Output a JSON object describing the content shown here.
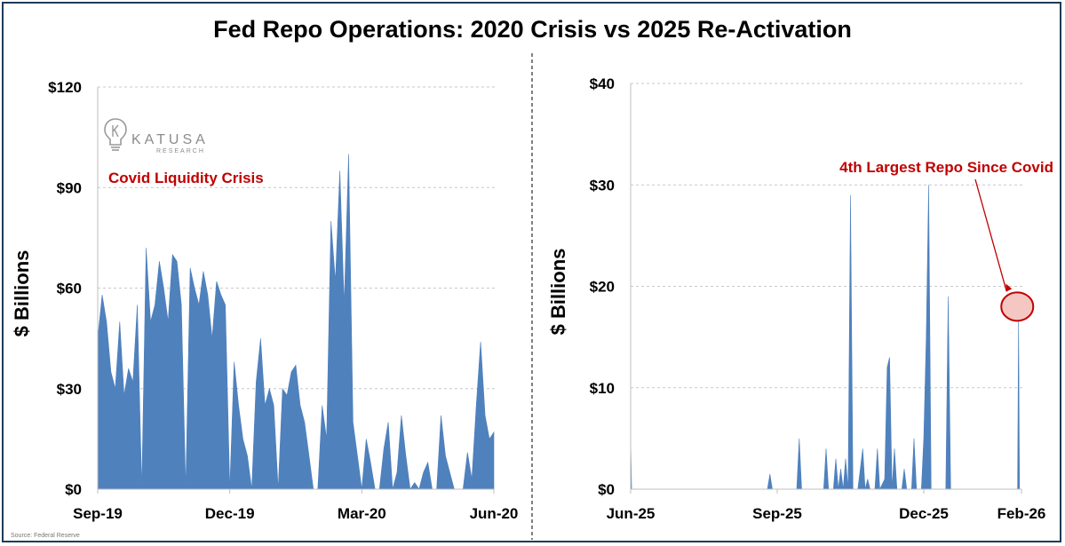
{
  "title": "Fed Repo Operations: 2020 Crisis vs 2025 Re-Activation",
  "source": "Source: Federal Reserve",
  "logo": {
    "name": "KATUSA",
    "sub": "RESEARCH",
    "icon": "lightbulb-icon"
  },
  "colors": {
    "area": "#4f81bd",
    "annotation": "#c00000",
    "highlight_fill": "#f4c7c3",
    "frame": "#1f3b57"
  },
  "chart_data": [
    {
      "type": "area",
      "ylabel": "$ Billions",
      "ylim": [
        0,
        120
      ],
      "yticks": [
        0,
        30,
        60,
        90,
        120
      ],
      "ytick_labels": [
        "$0",
        "$30",
        "$60",
        "$90",
        "$120"
      ],
      "xlim": [
        0,
        9
      ],
      "xtick_positions": [
        0,
        3,
        6,
        9
      ],
      "xtick_labels": [
        "Sep-19",
        "Dec-19",
        "Mar-20",
        "Jun-20"
      ],
      "annotation": "Covid Liquidity Crisis",
      "grid": true,
      "x": [
        0,
        0.1,
        0.2,
        0.3,
        0.4,
        0.5,
        0.6,
        0.7,
        0.8,
        0.9,
        1.0,
        1.1,
        1.2,
        1.3,
        1.4,
        1.5,
        1.6,
        1.7,
        1.8,
        1.9,
        2.0,
        2.1,
        2.2,
        2.3,
        2.4,
        2.5,
        2.6,
        2.7,
        2.8,
        2.9,
        3.0,
        3.1,
        3.2,
        3.3,
        3.4,
        3.5,
        3.6,
        3.7,
        3.8,
        3.9,
        4.0,
        4.1,
        4.2,
        4.3,
        4.4,
        4.5,
        4.6,
        4.7,
        4.8,
        4.9,
        5.0,
        5.1,
        5.2,
        5.3,
        5.4,
        5.5,
        5.6,
        5.7,
        5.8,
        5.9,
        6.0,
        6.1,
        6.2,
        6.3,
        6.4,
        6.5,
        6.6,
        6.7,
        6.8,
        6.9,
        7.0,
        7.1,
        7.2,
        7.3,
        7.4,
        7.5,
        7.6,
        7.7,
        7.8,
        7.9,
        8.0,
        8.1,
        8.2,
        8.3,
        8.4,
        8.5,
        8.6,
        8.7,
        8.8,
        8.9,
        9.0
      ],
      "values": [
        45,
        58,
        50,
        35,
        30,
        50,
        28,
        36,
        32,
        55,
        0,
        72,
        50,
        55,
        68,
        60,
        50,
        70,
        68,
        55,
        0,
        66,
        60,
        55,
        65,
        58,
        45,
        62,
        58,
        55,
        0,
        38,
        25,
        15,
        10,
        0,
        32,
        45,
        25,
        30,
        25,
        0,
        30,
        28,
        35,
        37,
        25,
        20,
        10,
        0,
        0,
        25,
        15,
        80,
        62,
        95,
        55,
        100,
        20,
        10,
        0,
        15,
        8,
        0,
        0,
        12,
        20,
        0,
        5,
        22,
        10,
        0,
        2,
        0,
        5,
        8,
        0,
        0,
        22,
        10,
        5,
        0,
        0,
        0,
        11,
        3,
        25,
        44,
        22,
        15,
        17
      ]
    },
    {
      "type": "area",
      "ylabel": "$ Billions",
      "ylim": [
        0,
        40
      ],
      "yticks": [
        0,
        10,
        20,
        30,
        40
      ],
      "ytick_labels": [
        "$0",
        "$10",
        "$20",
        "$30",
        "$40"
      ],
      "xlim": [
        0,
        8
      ],
      "xtick_positions": [
        0,
        3,
        6,
        8
      ],
      "xtick_labels": [
        "Jun-25",
        "Sep-25",
        "Dec-25",
        "Feb-26"
      ],
      "annotation": "4th Largest Repo Since Covid",
      "highlight_point": {
        "x": 7.95,
        "y": 18
      },
      "grid": true,
      "x": [
        0,
        0.02,
        0.05,
        2.8,
        2.85,
        2.9,
        2.95,
        3.4,
        3.45,
        3.5,
        3.95,
        4.0,
        4.05,
        4.15,
        4.2,
        4.25,
        4.3,
        4.35,
        4.4,
        4.45,
        4.5,
        4.55,
        4.6,
        4.65,
        4.75,
        4.8,
        4.85,
        4.9,
        5.0,
        5.05,
        5.1,
        5.2,
        5.25,
        5.3,
        5.35,
        5.4,
        5.45,
        5.55,
        5.6,
        5.65,
        5.7,
        5.75,
        5.8,
        5.85,
        5.95,
        6.0,
        6.05,
        6.1,
        6.15,
        6.45,
        6.5,
        6.55,
        6.85,
        6.9,
        6.95,
        7.0,
        7.05,
        7.1,
        7.15,
        7.2,
        7.9,
        7.92,
        7.94,
        7.96,
        7.98,
        8.0
      ],
      "values": [
        5,
        0,
        0,
        0,
        1.5,
        0,
        0,
        0,
        5,
        0,
        0,
        4,
        0,
        0,
        3,
        0,
        2,
        0,
        3,
        0,
        29,
        0,
        0,
        0,
        4,
        0,
        1,
        0,
        0,
        4,
        0,
        1,
        12,
        13,
        0,
        4,
        0,
        0,
        2,
        0,
        0,
        0,
        5,
        0,
        0,
        5,
        15,
        30,
        0,
        0,
        19,
        0,
        0,
        0,
        0,
        0,
        0,
        0,
        0,
        0,
        0,
        0,
        17,
        0,
        0,
        0
      ]
    }
  ]
}
